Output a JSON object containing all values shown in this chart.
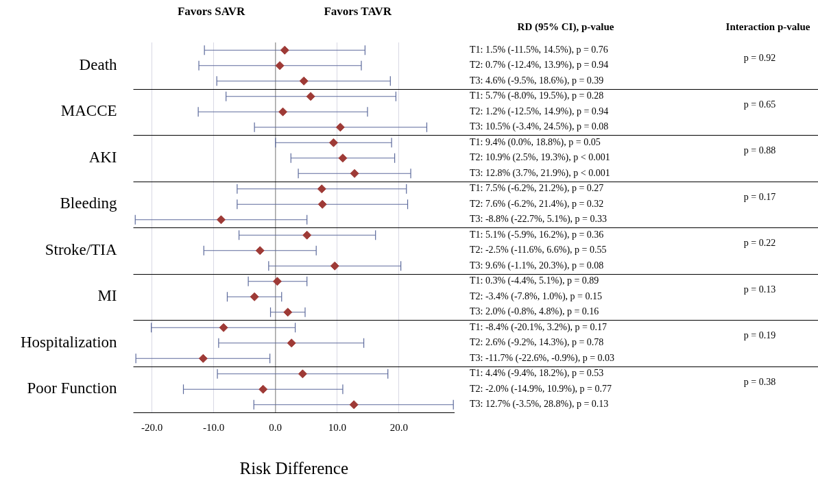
{
  "chart_data": {
    "type": "scatter",
    "orientation": "horizontal",
    "xlabel": "Risk Difference",
    "categories": [
      null,
      "Death",
      null,
      null,
      "MACCE",
      null,
      null,
      "AKI",
      null,
      null,
      "Bleeding",
      null,
      null,
      "Stroke/TIA",
      null,
      null,
      "MI",
      null,
      null,
      "Hospitalization",
      null,
      null,
      "Poor Function",
      null
    ],
    "series": [
      {
        "color": "#9e3a36",
        "values": [
          1.5,
          0.7,
          4.6,
          5.7,
          1.2,
          10.5,
          9.4,
          10.9,
          12.8,
          7.5,
          7.6,
          -8.8,
          5.1,
          -2.5,
          9.6,
          0.3,
          -3.4,
          2.0,
          -8.4,
          2.6,
          -11.7,
          4.4,
          -2.0,
          12.7
        ],
        "errors": [
          [
            -11.5,
            14.5
          ],
          [
            -12.4,
            13.9
          ],
          [
            -9.5,
            18.6
          ],
          [
            -8.0,
            19.5
          ],
          [
            -12.5,
            14.9
          ],
          [
            -3.4,
            24.5
          ],
          [
            0.0,
            18.8
          ],
          [
            2.5,
            19.3
          ],
          [
            3.7,
            21.9
          ],
          [
            -6.2,
            21.2
          ],
          [
            -6.2,
            21.4
          ],
          [
            -22.7,
            5.1
          ],
          [
            -5.9,
            16.2
          ],
          [
            -11.6,
            6.6
          ],
          [
            -1.1,
            20.3
          ],
          [
            -4.4,
            5.1
          ],
          [
            -7.8,
            1.0
          ],
          [
            -0.8,
            4.8
          ],
          [
            -20.1,
            3.2
          ],
          [
            -9.2,
            14.3
          ],
          [
            -22.6,
            -0.9
          ],
          [
            -9.4,
            18.2
          ],
          [
            -14.9,
            10.9
          ],
          [
            -3.5,
            28.8
          ]
        ]
      }
    ],
    "xlim": [
      -23,
      29
    ],
    "xticks": [
      {
        "value": -20,
        "label": "-20.0"
      },
      {
        "value": -10,
        "label": "-10.0"
      },
      {
        "value": 0,
        "label": "0.0"
      },
      {
        "value": 10,
        "label": "10.0"
      },
      {
        "value": 20,
        "label": "20.0"
      }
    ],
    "grid": "x",
    "marker": "diamond",
    "ref_lines": [
      {
        "axis": "x",
        "value": 0,
        "color": "#a0a0a0"
      }
    ],
    "annotations": [
      "Favors SAVR",
      "Favors TAVR",
      "RD (95% CI), p-value",
      "Interaction p-value",
      "T1: 1.5% (-11.5%, 14.5%), p = 0.76",
      "T2: 0.7% (-12.4%, 13.9%), p = 0.94",
      "T3: 4.6% (-9.5%, 18.6%), p = 0.39",
      "T1: 5.7% (-8.0%, 19.5%), p = 0.28",
      "T2: 1.2% (-12.5%, 14.9%), p = 0.94",
      "T3: 10.5% (-3.4%, 24.5%), p = 0.08",
      "T1: 9.4% (0.0%, 18.8%), p = 0.05",
      "T2: 10.9% (2.5%, 19.3%), p < 0.001",
      "T3: 12.8% (3.7%, 21.9%), p < 0.001",
      "T1: 7.5% (-6.2%, 21.2%), p = 0.27",
      "T2: 7.6% (-6.2%, 21.4%), p = 0.32",
      "T3: -8.8% (-22.7%, 5.1%), p = 0.33",
      "T1: 5.1% (-5.9%, 16.2%), p = 0.36",
      "T2: -2.5% (-11.6%, 6.6%), p = 0.55",
      "T3: 9.6% (-1.1%, 20.3%), p = 0.08",
      "T1: 0.3% (-4.4%, 5.1%), p = 0.89",
      "T2: -3.4% (-7.8%, 1.0%), p = 0.15",
      "T3: 2.0% (-0.8%, 4.8%), p = 0.16",
      "T1: -8.4% (-20.1%, 3.2%), p = 0.17",
      "T2: 2.6% (-9.2%, 14.3%), p = 0.78",
      "T3: -11.7% (-22.6%, -0.9%), p = 0.03",
      "T1: 4.4% (-9.4%, 18.2%), p = 0.53",
      "T2: -2.0% (-14.9%, 10.9%), p = 0.77",
      "T3: 12.7% (-3.5%, 28.8%), p = 0.13",
      "p = 0.92",
      "p = 0.65",
      "p = 0.88",
      "p = 0.17",
      "p = 0.22",
      "p = 0.13",
      "p = 0.19",
      "p = 0.38"
    ]
  }
}
